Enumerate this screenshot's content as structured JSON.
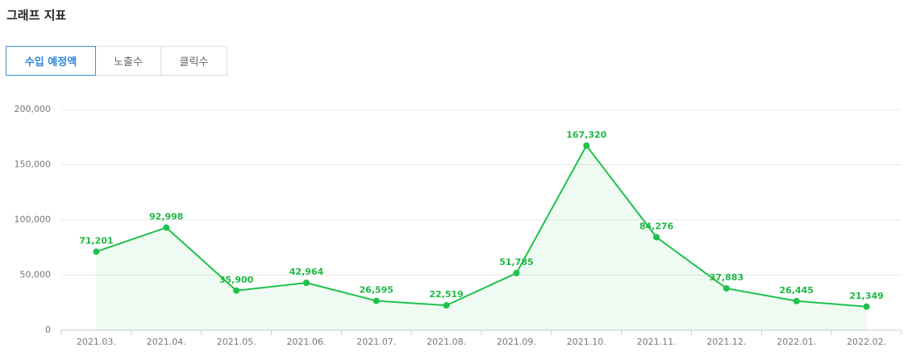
{
  "header": {
    "title": "그래프 지표"
  },
  "tabs": [
    "수입 예정액",
    "노출수",
    "클릭수"
  ],
  "chart_data": {
    "type": "line",
    "categories": [
      "2021.03.",
      "2021.04.",
      "2021.05.",
      "2021.06.",
      "2021.07.",
      "2021.08.",
      "2021.09.",
      "2021.10.",
      "2021.11.",
      "2021.12.",
      "2022.01.",
      "2022.02."
    ],
    "values": [
      71201,
      92998,
      35900,
      42964,
      26595,
      22519,
      51785,
      167320,
      84276,
      37883,
      26445,
      21349
    ],
    "value_labels": [
      "71,201",
      "92,998",
      "35,900",
      "42,964",
      "26,595",
      "22,519",
      "51,785",
      "167,320",
      "84,276",
      "37,883",
      "26,445",
      "21,349"
    ],
    "color": "#1cc24a",
    "ylim": [
      0,
      200000
    ],
    "yticks": [
      0,
      {
        "value": 50000,
        "label": "50,000"
      },
      {
        "value": 100000,
        "label": "100,000"
      },
      {
        "value": 150000,
        "label": "150,000"
      },
      {
        "value": 200000,
        "label": "200,000"
      }
    ],
    "grid": true
  }
}
